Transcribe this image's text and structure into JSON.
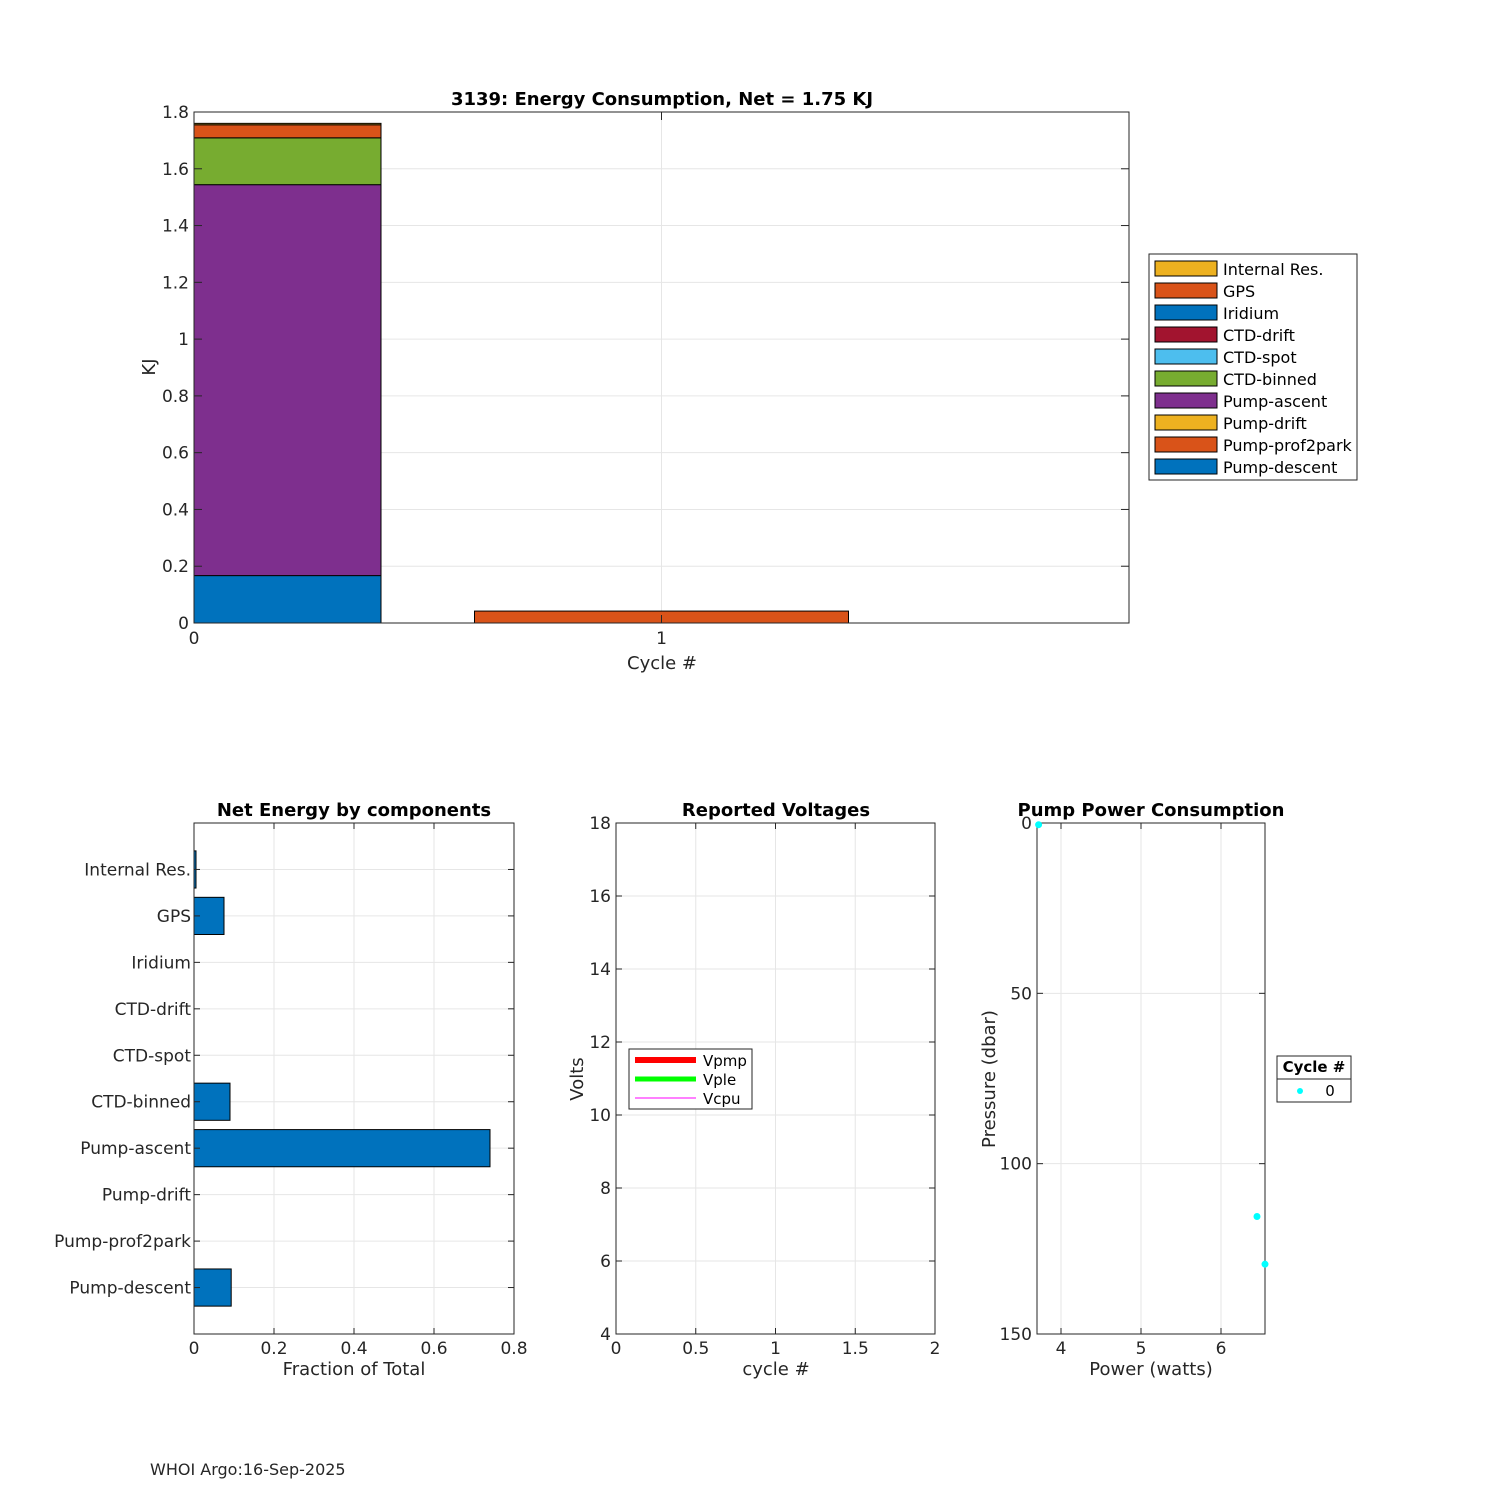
{
  "footer": "WHOI Argo:16-Sep-2025",
  "chart_data": [
    {
      "id": "energy",
      "type": "bar",
      "stacked": true,
      "title": "3139: Energy Consumption,  Net =   1.75 KJ",
      "xlabel": "Cycle #",
      "ylabel": "KJ",
      "xlim": [
        0,
        2
      ],
      "ylim": [
        0,
        1.8
      ],
      "xticks": [
        "0",
        "1"
      ],
      "yticks": [
        "0",
        "0.2",
        "0.4",
        "0.6",
        "0.8",
        "1",
        "1.2",
        "1.4",
        "1.6",
        "1.8"
      ],
      "bars": [
        {
          "x": 0,
          "segments": [
            {
              "name": "Pump-descent",
              "value": 0.167
            },
            {
              "name": "Pump-prof2park",
              "value": 0
            },
            {
              "name": "Pump-drift",
              "value": 0
            },
            {
              "name": "Pump-ascent",
              "value": 1.377
            },
            {
              "name": "CTD-binned",
              "value": 0.165
            },
            {
              "name": "CTD-spot",
              "value": 0
            },
            {
              "name": "CTD-drift",
              "value": 0
            },
            {
              "name": "Iridium",
              "value": 0
            },
            {
              "name": "GPS",
              "value": 0.046
            },
            {
              "name": "Internal Res.",
              "value": 0.005
            }
          ]
        },
        {
          "x": 1,
          "segments": [
            {
              "name": "GPS",
              "value": 0.042
            }
          ]
        }
      ],
      "legend": {
        "location": "right",
        "entries": [
          {
            "name": "Internal Res.",
            "color": "#EDB120"
          },
          {
            "name": "GPS",
            "color": "#D95319"
          },
          {
            "name": "Iridium",
            "color": "#0072BD"
          },
          {
            "name": "CTD-drift",
            "color": "#A2142F"
          },
          {
            "name": "CTD-spot",
            "color": "#4DBEEE"
          },
          {
            "name": "CTD-binned",
            "color": "#77AC30"
          },
          {
            "name": "Pump-ascent",
            "color": "#7E2F8E"
          },
          {
            "name": "Pump-drift",
            "color": "#EDB120"
          },
          {
            "name": "Pump-prof2park",
            "color": "#D95319"
          },
          {
            "name": "Pump-descent",
            "color": "#0072BD"
          }
        ]
      }
    },
    {
      "id": "components",
      "type": "bar",
      "orientation": "horizontal",
      "title": "Net Energy by components",
      "xlabel": "Fraction of Total",
      "ylabel": "",
      "xlim": [
        0,
        0.8
      ],
      "xticks": [
        "0",
        "0.2",
        "0.4",
        "0.6",
        "0.8"
      ],
      "categories": [
        "Internal Res.",
        "GPS",
        "Iridium",
        "CTD-drift",
        "CTD-spot",
        "CTD-binned",
        "Pump-ascent",
        "Pump-drift",
        "Pump-prof2park",
        "Pump-descent"
      ],
      "values": [
        0.005,
        0.075,
        0,
        0,
        0,
        0.09,
        0.74,
        0,
        0,
        0.093
      ],
      "bar_color": "#0072BD"
    },
    {
      "id": "voltages",
      "type": "line",
      "title": "Reported Voltages",
      "xlabel": "cycle #",
      "ylabel": "Volts",
      "xlim": [
        0,
        2
      ],
      "ylim": [
        4,
        18
      ],
      "xticks": [
        "0",
        "0.5",
        "1",
        "1.5",
        "2"
      ],
      "yticks": [
        "4",
        "6",
        "8",
        "10",
        "12",
        "14",
        "16",
        "18"
      ],
      "series": [
        {
          "name": "Vpmp",
          "color": "#FF0000",
          "values": []
        },
        {
          "name": "Vple",
          "color": "#00FF00",
          "values": []
        },
        {
          "name": "Vcpu",
          "color": "#FF00FF",
          "values": []
        }
      ],
      "legend": {
        "location": "west"
      }
    },
    {
      "id": "pump",
      "type": "scatter",
      "title": "Pump Power Consumption",
      "xlabel": "Power (watts)",
      "ylabel": "Pressure (dbar)",
      "xlim": [
        3.7,
        6.55
      ],
      "ylim": [
        0,
        150
      ],
      "y_reversed": true,
      "xticks": [
        "4",
        "5",
        "6"
      ],
      "yticks": [
        "0",
        "50",
        "100",
        "150"
      ],
      "series": [
        {
          "name": "0",
          "color": "#00FFFF",
          "points": [
            [
              3.72,
              0.5
            ],
            [
              6.45,
              115.5
            ],
            [
              6.55,
              129.5
            ]
          ]
        }
      ],
      "legend": {
        "title": "Cycle #",
        "location": "east-outside"
      }
    }
  ]
}
